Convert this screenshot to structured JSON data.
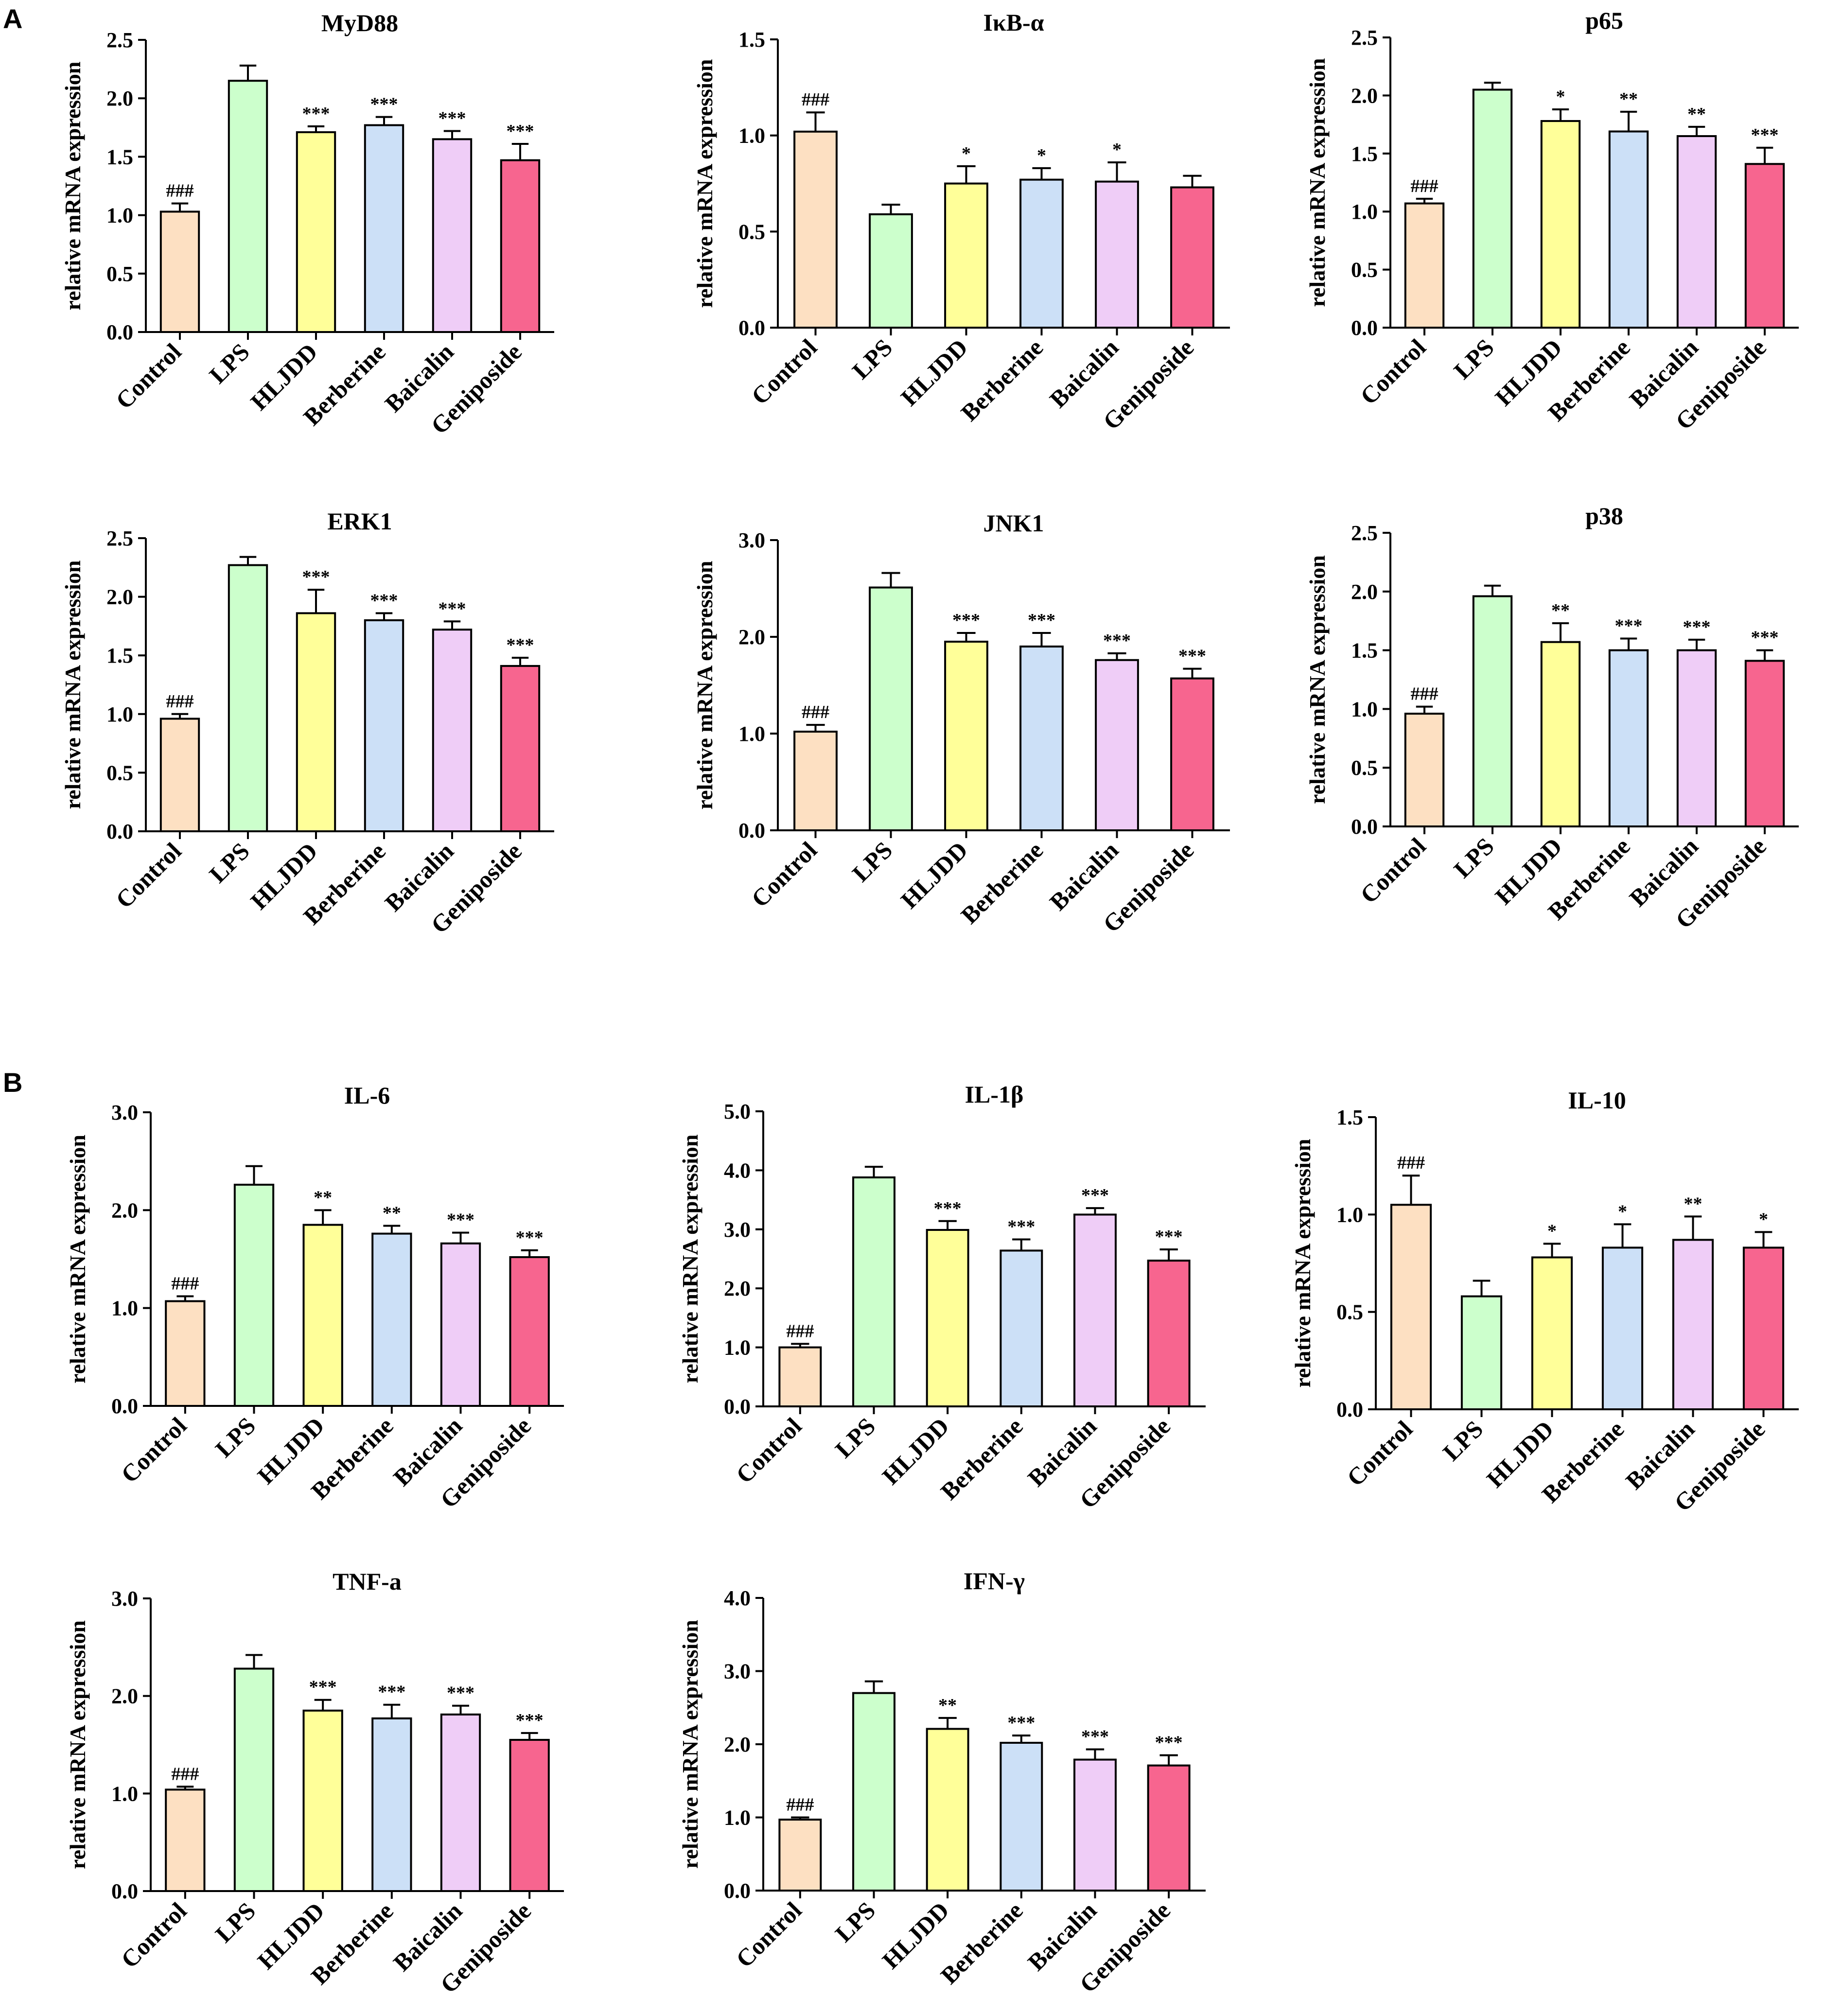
{
  "panel_labels": [
    "A",
    "B"
  ],
  "ylabel": "relative mRNA expression",
  "categories": [
    "Control",
    "LPS",
    "HLJDD",
    "Berberine",
    "Baicalin",
    "Geniposide"
  ],
  "bar_colors": [
    "#fde0c2",
    "#ccffcc",
    "#ffff99",
    "#cce0f7",
    "#efcdf7",
    "#f7658f"
  ],
  "chart_data": [
    {
      "type": "bar",
      "panel": "A",
      "title": "MyD88",
      "xlabel": "",
      "ylabel": "relative mRNA expression",
      "categories": [
        "Control",
        "LPS",
        "HLJDD",
        "Berberine",
        "Baicalin",
        "Geniposide"
      ],
      "values": [
        1.03,
        2.15,
        1.71,
        1.77,
        1.65,
        1.47
      ],
      "errors": [
        0.07,
        0.13,
        0.05,
        0.07,
        0.07,
        0.14
      ],
      "significance": [
        "###",
        "",
        "***",
        "***",
        "***",
        "***"
      ],
      "ylim": [
        0,
        2.5
      ],
      "yticks": [
        "0.0",
        "0.5",
        "1.0",
        "1.5",
        "2.0",
        "2.5"
      ]
    },
    {
      "type": "bar",
      "panel": "A",
      "title": "IκB-α",
      "xlabel": "",
      "ylabel": "relative mRNA expression",
      "categories": [
        "Control",
        "LPS",
        "HLJDD",
        "Berberine",
        "Baicalin",
        "Geniposide"
      ],
      "values": [
        1.02,
        0.59,
        0.75,
        0.77,
        0.76,
        0.73
      ],
      "errors": [
        0.1,
        0.05,
        0.09,
        0.06,
        0.1,
        0.06
      ],
      "significance": [
        "###",
        "",
        "*",
        "*",
        "*",
        ""
      ],
      "ylim": [
        0,
        1.5
      ],
      "yticks": [
        "0.0",
        "0.5",
        "1.0",
        "1.5"
      ]
    },
    {
      "type": "bar",
      "panel": "A",
      "title": "p65",
      "xlabel": "",
      "ylabel": "relative mRNA expression",
      "categories": [
        "Control",
        "LPS",
        "HLJDD",
        "Berberine",
        "Baicalin",
        "Geniposide"
      ],
      "values": [
        1.07,
        2.05,
        1.78,
        1.69,
        1.65,
        1.41
      ],
      "errors": [
        0.04,
        0.06,
        0.1,
        0.17,
        0.08,
        0.14
      ],
      "significance": [
        "###",
        "",
        "*",
        "**",
        "**",
        "***"
      ],
      "ylim": [
        0,
        2.5
      ],
      "yticks": [
        "0.0",
        "0.5",
        "1.0",
        "1.5",
        "2.0",
        "2.5"
      ]
    },
    {
      "type": "bar",
      "panel": "A",
      "title": "ERK1",
      "xlabel": "",
      "ylabel": "relative mRNA expression",
      "categories": [
        "Control",
        "LPS",
        "HLJDD",
        "Berberine",
        "Baicalin",
        "Geniposide"
      ],
      "values": [
        0.96,
        2.27,
        1.86,
        1.8,
        1.72,
        1.41
      ],
      "errors": [
        0.04,
        0.07,
        0.2,
        0.06,
        0.07,
        0.07
      ],
      "significance": [
        "###",
        "",
        "***",
        "***",
        "***",
        "***"
      ],
      "ylim": [
        0,
        2.5
      ],
      "yticks": [
        "0.0",
        "0.5",
        "1.0",
        "1.5",
        "2.0",
        "2.5"
      ]
    },
    {
      "type": "bar",
      "panel": "A",
      "title": "JNK1",
      "xlabel": "",
      "ylabel": "relative mRNA expression",
      "categories": [
        "Control",
        "LPS",
        "HLJDD",
        "Berberine",
        "Baicalin",
        "Geniposide"
      ],
      "values": [
        1.02,
        2.51,
        1.95,
        1.9,
        1.76,
        1.57
      ],
      "errors": [
        0.07,
        0.15,
        0.09,
        0.14,
        0.07,
        0.1
      ],
      "significance": [
        "###",
        "",
        "***",
        "***",
        "***",
        "***"
      ],
      "ylim": [
        0,
        3.0
      ],
      "yticks": [
        "0.0",
        "1.0",
        "2.0",
        "3.0"
      ]
    },
    {
      "type": "bar",
      "panel": "A",
      "title": "p38",
      "xlabel": "",
      "ylabel": "relative mRNA expression",
      "categories": [
        "Control",
        "LPS",
        "HLJDD",
        "Berberine",
        "Baicalin",
        "Geniposide"
      ],
      "values": [
        0.96,
        1.96,
        1.57,
        1.5,
        1.5,
        1.41
      ],
      "errors": [
        0.06,
        0.09,
        0.16,
        0.1,
        0.09,
        0.09
      ],
      "significance": [
        "###",
        "",
        "**",
        "***",
        "***",
        "***"
      ],
      "ylim": [
        0,
        2.5
      ],
      "yticks": [
        "0.0",
        "0.5",
        "1.0",
        "1.5",
        "2.0",
        "2.5"
      ]
    },
    {
      "type": "bar",
      "panel": "B",
      "title": "IL-6",
      "xlabel": "",
      "ylabel": "relative mRNA expression",
      "categories": [
        "Control",
        "LPS",
        "HLJDD",
        "Berberine",
        "Baicalin",
        "Geniposide"
      ],
      "values": [
        1.07,
        2.26,
        1.85,
        1.76,
        1.66,
        1.52
      ],
      "errors": [
        0.05,
        0.19,
        0.15,
        0.08,
        0.11,
        0.07
      ],
      "significance": [
        "###",
        "",
        "**",
        "**",
        "***",
        "***"
      ],
      "ylim": [
        0,
        3.0
      ],
      "yticks": [
        "0.0",
        "1.0",
        "2.0",
        "3.0"
      ]
    },
    {
      "type": "bar",
      "panel": "B",
      "title": "IL-1β",
      "xlabel": "",
      "ylabel": "relative mRNA expression",
      "categories": [
        "Control",
        "LPS",
        "HLJDD",
        "Berberine",
        "Baicalin",
        "Geniposide"
      ],
      "values": [
        1.0,
        3.88,
        2.99,
        2.64,
        3.25,
        2.47
      ],
      "errors": [
        0.06,
        0.18,
        0.15,
        0.19,
        0.11,
        0.19
      ],
      "significance": [
        "###",
        "",
        "***",
        "***",
        "***",
        "***"
      ],
      "ylim": [
        0,
        5.0
      ],
      "yticks": [
        "0.0",
        "1.0",
        "2.0",
        "3.0",
        "4.0",
        "5.0"
      ]
    },
    {
      "type": "bar",
      "panel": "B",
      "title": "IL-10",
      "xlabel": "",
      "ylabel": "relative mRNA expression",
      "categories": [
        "Control",
        "LPS",
        "HLJDD",
        "Berberine",
        "Baicalin",
        "Geniposide"
      ],
      "values": [
        1.05,
        0.58,
        0.78,
        0.83,
        0.87,
        0.83
      ],
      "errors": [
        0.15,
        0.08,
        0.07,
        0.12,
        0.12,
        0.08
      ],
      "significance": [
        "###",
        "",
        "*",
        "*",
        "**",
        "*"
      ],
      "ylim": [
        0,
        1.5
      ],
      "yticks": [
        "0.0",
        "0.5",
        "1.0",
        "1.5"
      ]
    },
    {
      "type": "bar",
      "panel": "B",
      "title": "TNF-a",
      "xlabel": "",
      "ylabel": "relative mRNA expression",
      "categories": [
        "Control",
        "LPS",
        "HLJDD",
        "Berberine",
        "Baicalin",
        "Geniposide"
      ],
      "values": [
        1.04,
        2.28,
        1.85,
        1.77,
        1.81,
        1.55
      ],
      "errors": [
        0.03,
        0.14,
        0.11,
        0.14,
        0.09,
        0.07
      ],
      "significance": [
        "###",
        "",
        "***",
        "***",
        "***",
        "***"
      ],
      "ylim": [
        0,
        3.0
      ],
      "yticks": [
        "0.0",
        "1.0",
        "2.0",
        "3.0"
      ]
    },
    {
      "type": "bar",
      "panel": "B",
      "title": "IFN-γ",
      "xlabel": "",
      "ylabel": "relative mRNA expression",
      "categories": [
        "Control",
        "LPS",
        "HLJDD",
        "Berberine",
        "Baicalin",
        "Geniposide"
      ],
      "values": [
        0.97,
        2.7,
        2.21,
        2.02,
        1.79,
        1.71
      ],
      "errors": [
        0.03,
        0.16,
        0.15,
        0.1,
        0.14,
        0.14
      ],
      "significance": [
        "###",
        "",
        "**",
        "***",
        "***",
        "***"
      ],
      "ylim": [
        0,
        4.0
      ],
      "yticks": [
        "0.0",
        "1.0",
        "2.0",
        "3.0",
        "4.0"
      ]
    }
  ]
}
